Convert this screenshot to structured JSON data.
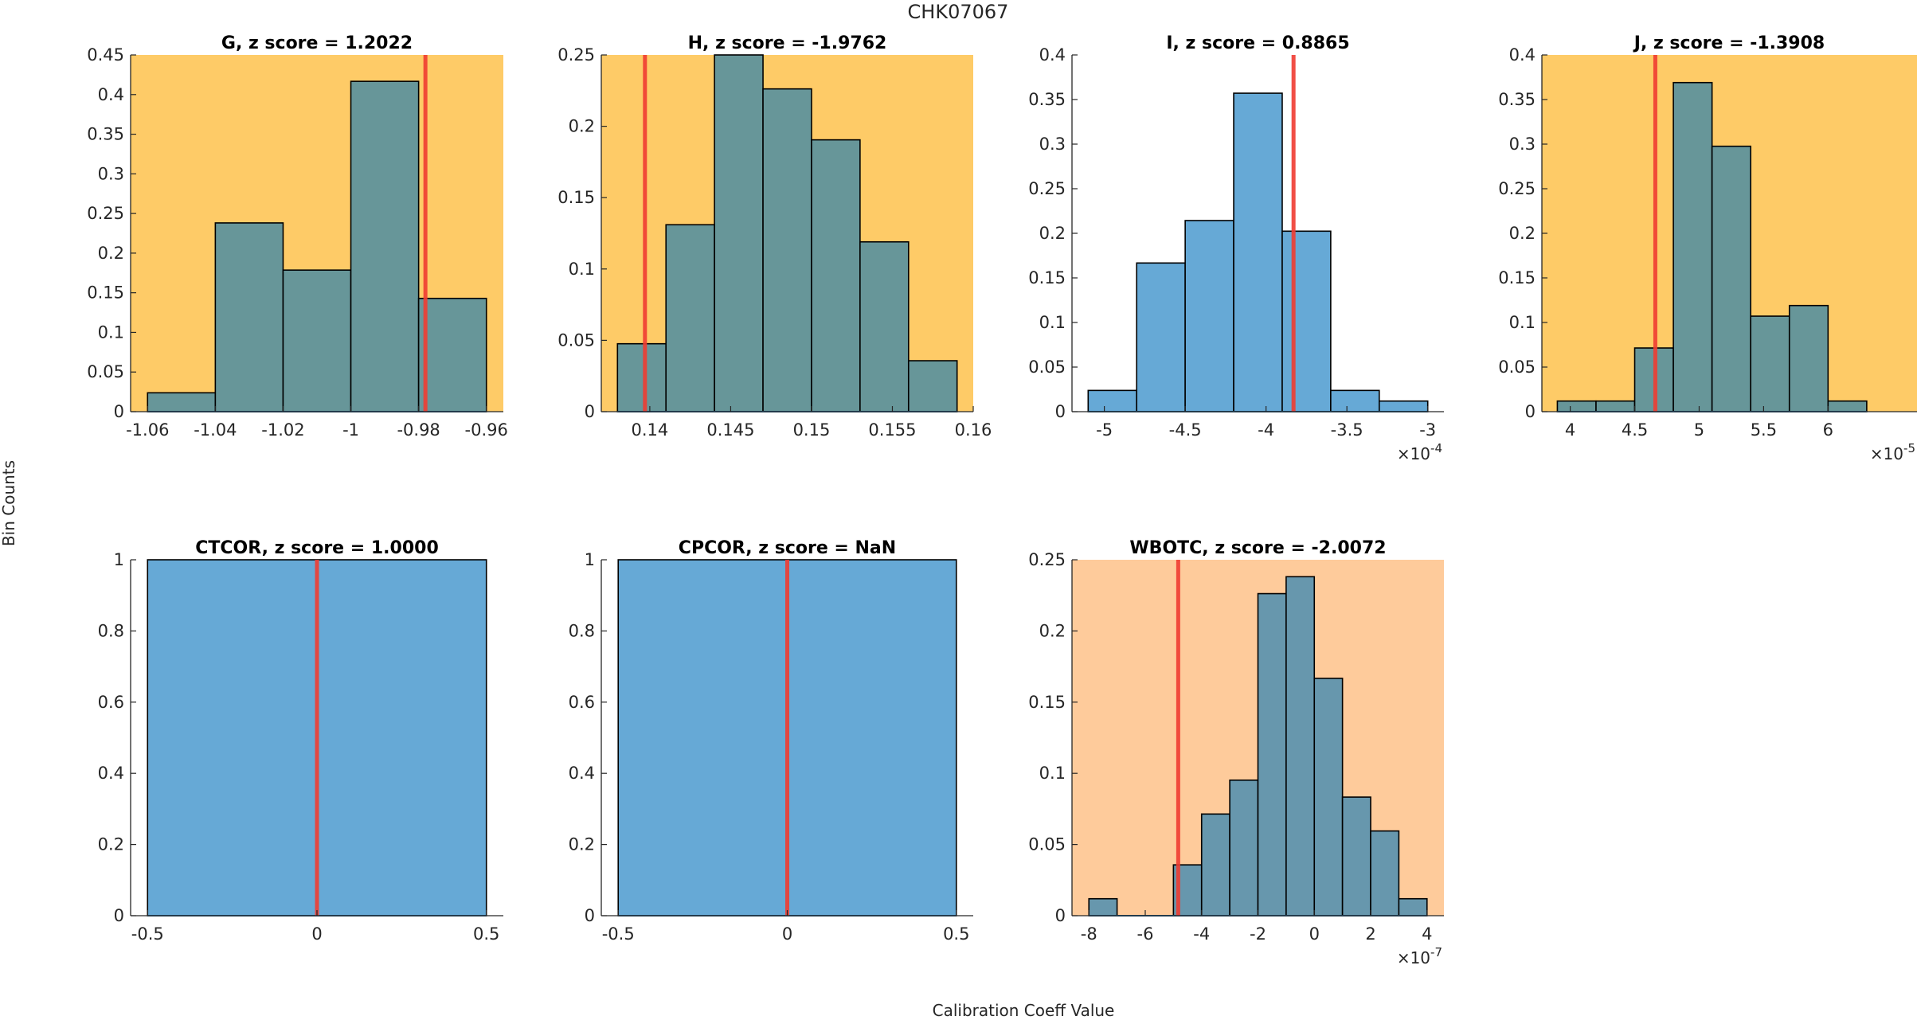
{
  "figure": {
    "title": "CHK07067",
    "ylabel": "Bin Counts",
    "xlabel": "Calibration Coeff Value"
  },
  "colors": {
    "flag_bg_orange": "#FECB67",
    "flag_bg_peach": "#FECB9B",
    "bar_blue": "#66A9D6",
    "bar_teal": "#679699",
    "bar_slate": "#6797AD",
    "marker_red": "#F03C32",
    "axis": "#262626",
    "edge": "#000000"
  },
  "chart_data": [
    {
      "id": "G",
      "type": "bar",
      "title": "G, z score = 1.2022",
      "background": "flag_bg_orange",
      "bar_color": "bar_teal",
      "xlim": [
        -1.065,
        -0.955
      ],
      "ylim": [
        0,
        0.45
      ],
      "xticks": [
        -1.06,
        -1.04,
        -1.02,
        -1,
        -0.98,
        -0.96
      ],
      "xtick_labels": [
        "-1.06",
        "-1.04",
        "-1.02",
        "-1",
        "-0.98",
        "-0.96"
      ],
      "yticks": [
        0,
        0.05,
        0.1,
        0.15,
        0.2,
        0.25,
        0.3,
        0.35,
        0.4,
        0.45
      ],
      "ytick_labels": [
        "0",
        "0.05",
        "0.1",
        "0.15",
        "0.2",
        "0.25",
        "0.3",
        "0.35",
        "0.4",
        "0.45"
      ],
      "exponent": "",
      "bin_edges": [
        -1.06,
        -1.04,
        -1.02,
        -1.0,
        -0.98,
        -0.96
      ],
      "values": [
        0.0238,
        0.2381,
        0.1786,
        0.4167,
        0.1429
      ],
      "marker_x": -0.978
    },
    {
      "id": "H",
      "type": "bar",
      "title": "H, z score = -1.9762",
      "background": "flag_bg_orange",
      "bar_color": "bar_teal",
      "xlim": [
        0.137,
        0.16
      ],
      "ylim": [
        0,
        0.25
      ],
      "xticks": [
        0.14,
        0.145,
        0.15,
        0.155,
        0.16
      ],
      "xtick_labels": [
        "0.14",
        "0.145",
        "0.15",
        "0.155",
        "0.16"
      ],
      "yticks": [
        0,
        0.05,
        0.1,
        0.15,
        0.2,
        0.25
      ],
      "ytick_labels": [
        "0",
        "0.05",
        "0.1",
        "0.15",
        "0.2",
        "0.25"
      ],
      "exponent": "",
      "bin_edges": [
        0.138,
        0.141,
        0.144,
        0.147,
        0.15,
        0.153,
        0.156,
        0.159
      ],
      "values": [
        0.0476,
        0.131,
        0.25,
        0.2262,
        0.1905,
        0.119,
        0.0357
      ],
      "marker_x": 0.1397
    },
    {
      "id": "I",
      "type": "bar",
      "title": "I, z score = 0.8865",
      "background": "none",
      "bar_color": "bar_blue",
      "xlim": [
        -5.2,
        -2.9
      ],
      "ylim": [
        0,
        0.4
      ],
      "xticks": [
        -5,
        -4.5,
        -4,
        -3.5,
        -3
      ],
      "xtick_labels": [
        "-5",
        "-4.5",
        "-4",
        "-3.5",
        "-3"
      ],
      "yticks": [
        0,
        0.05,
        0.1,
        0.15,
        0.2,
        0.25,
        0.3,
        0.35,
        0.4
      ],
      "ytick_labels": [
        "0",
        "0.05",
        "0.1",
        "0.15",
        "0.2",
        "0.25",
        "0.3",
        "0.35",
        "0.4"
      ],
      "exponent": "-4",
      "bin_edges": [
        -5.1,
        -4.8,
        -4.5,
        -4.2,
        -3.9,
        -3.6,
        -3.3,
        -3.0
      ],
      "values": [
        0.0238,
        0.1667,
        0.2143,
        0.3571,
        0.2024,
        0.0238,
        0.0119
      ],
      "marker_x": -3.83
    },
    {
      "id": "J",
      "type": "bar",
      "title": "J, z score = -1.3908",
      "background": "flag_bg_orange",
      "bar_color": "bar_teal",
      "xlim": [
        3.78,
        6.69
      ],
      "ylim": [
        0,
        0.4
      ],
      "xticks": [
        4,
        4.5,
        5,
        5.5,
        6
      ],
      "xtick_labels": [
        "4",
        "4.5",
        "5",
        "5.5",
        "6"
      ],
      "yticks": [
        0,
        0.05,
        0.1,
        0.15,
        0.2,
        0.25,
        0.3,
        0.35,
        0.4
      ],
      "ytick_labels": [
        "0",
        "0.05",
        "0.1",
        "0.15",
        "0.2",
        "0.25",
        "0.3",
        "0.35",
        "0.4"
      ],
      "exponent": "-5",
      "bin_edges": [
        3.9,
        4.2,
        4.5,
        4.8,
        5.1,
        5.4,
        5.7,
        6.0,
        6.3
      ],
      "values": [
        0.0119,
        0.0119,
        0.0714,
        0.369,
        0.2976,
        0.1071,
        0.119,
        0.0119
      ],
      "marker_x": 4.66
    },
    {
      "id": "CTCOR",
      "type": "bar",
      "title": "CTCOR, z score = 1.0000",
      "background": "none",
      "bar_color": "bar_blue",
      "xlim": [
        -0.55,
        0.55
      ],
      "ylim": [
        0,
        1
      ],
      "xticks": [
        -0.5,
        0,
        0.5
      ],
      "xtick_labels": [
        "-0.5",
        "0",
        "0.5"
      ],
      "yticks": [
        0,
        0.2,
        0.4,
        0.6,
        0.8,
        1
      ],
      "ytick_labels": [
        "0",
        "0.2",
        "0.4",
        "0.6",
        "0.8",
        "1"
      ],
      "exponent": "",
      "bin_edges": [
        -0.5,
        0.5
      ],
      "values": [
        1
      ],
      "marker_x": 0
    },
    {
      "id": "CPCOR",
      "type": "bar",
      "title": "CPCOR, z score = NaN",
      "background": "none",
      "bar_color": "bar_blue",
      "xlim": [
        -0.55,
        0.55
      ],
      "ylim": [
        0,
        1
      ],
      "xticks": [
        -0.5,
        0,
        0.5
      ],
      "xtick_labels": [
        "-0.5",
        "0",
        "0.5"
      ],
      "yticks": [
        0,
        0.2,
        0.4,
        0.6,
        0.8,
        1
      ],
      "ytick_labels": [
        "0",
        "0.2",
        "0.4",
        "0.6",
        "0.8",
        "1"
      ],
      "exponent": "",
      "bin_edges": [
        -0.5,
        0.5
      ],
      "values": [
        1
      ],
      "marker_x": 0
    },
    {
      "id": "WBOTC",
      "type": "bar",
      "title": "WBOTC, z score = -2.0072",
      "background": "flag_bg_peach",
      "bar_color": "bar_slate",
      "xlim": [
        -8.6,
        4.6
      ],
      "ylim": [
        0,
        0.25
      ],
      "xticks": [
        -8,
        -6,
        -4,
        -2,
        0,
        2,
        4
      ],
      "xtick_labels": [
        "-8",
        "-6",
        "-4",
        "-2",
        "0",
        "2",
        "4"
      ],
      "yticks": [
        0,
        0.05,
        0.1,
        0.15,
        0.2,
        0.25
      ],
      "ytick_labels": [
        "0",
        "0.05",
        "0.1",
        "0.15",
        "0.2",
        "0.25"
      ],
      "exponent": "-7",
      "bin_edges": [
        -8,
        -7,
        -6,
        -5,
        -4,
        -3,
        -2,
        -1,
        0,
        1,
        2,
        3,
        4
      ],
      "values": [
        0.0119,
        0,
        0,
        0.0357,
        0.0714,
        0.0952,
        0.2262,
        0.2381,
        0.1667,
        0.0833,
        0.0595,
        0.0119
      ],
      "marker_x": -4.83
    }
  ]
}
